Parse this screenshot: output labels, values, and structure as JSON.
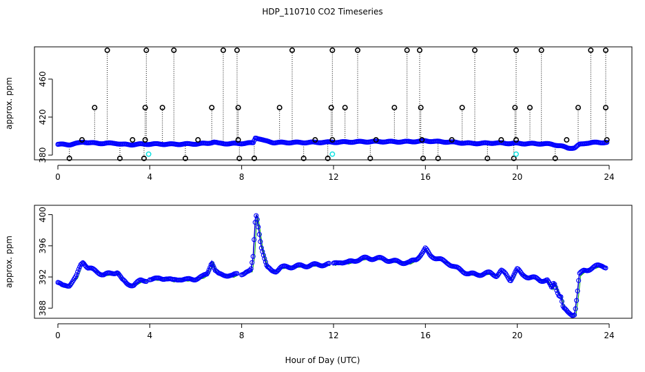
{
  "title": "HDP_110710  CO2 Timeseries",
  "xlabel": "Hour of Day (UTC)",
  "colors": {
    "primary": "#0000ff",
    "outlier": "#000000",
    "flagged": "#00e0e0",
    "smooth": "#00aa00",
    "line": "#0000cc"
  },
  "chart_data": [
    {
      "type": "scatter",
      "name": "top-panel",
      "ylabel": "approx. ppm",
      "xlim": [
        0,
        24
      ],
      "ylim": [
        375,
        494
      ],
      "xticks": [
        0,
        4,
        8,
        12,
        16,
        20,
        24
      ],
      "yticks": [
        380,
        420,
        460
      ],
      "baseline": [
        [
          0,
          391.3
        ],
        [
          0.5,
          391.0
        ],
        [
          0.9,
          392.6
        ],
        [
          1.1,
          394.0
        ],
        [
          1.4,
          392.8
        ],
        [
          2.0,
          392.3
        ],
        [
          2.5,
          392.6
        ],
        [
          2.8,
          391.2
        ],
        [
          3.2,
          391.0
        ],
        [
          3.6,
          391.5
        ],
        [
          4.0,
          391.6
        ],
        [
          4.5,
          391.6
        ],
        [
          5.0,
          391.4
        ],
        [
          5.5,
          391.6
        ],
        [
          6.0,
          391.8
        ],
        [
          6.5,
          392.3
        ],
        [
          6.8,
          393.8
        ],
        [
          7.0,
          392.3
        ],
        [
          7.5,
          392.0
        ],
        [
          8.0,
          392.3
        ],
        [
          8.5,
          392.8
        ],
        [
          8.6,
          398.5
        ],
        [
          8.8,
          397.0
        ],
        [
          9.0,
          395.0
        ],
        [
          9.4,
          393.2
        ],
        [
          10.0,
          393.2
        ],
        [
          11.0,
          393.3
        ],
        [
          12.0,
          393.6
        ],
        [
          12.5,
          393.7
        ],
        [
          13.0,
          394.0
        ],
        [
          14.0,
          394.2
        ],
        [
          15.0,
          394.0
        ],
        [
          15.8,
          394.5
        ],
        [
          16.0,
          395.0
        ],
        [
          16.5,
          394.2
        ],
        [
          17.0,
          393.8
        ],
        [
          17.5,
          393.0
        ],
        [
          18.0,
          392.3
        ],
        [
          18.5,
          392.4
        ],
        [
          19.0,
          392.8
        ],
        [
          19.5,
          392.4
        ],
        [
          20.0,
          392.3
        ],
        [
          20.5,
          392.0
        ],
        [
          21.0,
          392.0
        ],
        [
          21.5,
          391.5
        ],
        [
          21.9,
          389.5
        ],
        [
          22.2,
          387.5
        ],
        [
          22.5,
          387.5
        ],
        [
          22.7,
          391.0
        ],
        [
          23.0,
          392.7
        ],
        [
          23.5,
          393.3
        ],
        [
          23.9,
          393.3
        ]
      ],
      "outliers_high": [
        2.15,
        3.85,
        5.05,
        7.2,
        7.8,
        10.2,
        11.95,
        13.05,
        15.2,
        15.75,
        18.15,
        19.95,
        21.05,
        23.2,
        23.85
      ],
      "outliers_mid": [
        1.6,
        3.8,
        4.55,
        6.7,
        7.85,
        9.65,
        11.9,
        12.5,
        14.65,
        15.8,
        17.6,
        19.9,
        20.55,
        22.65,
        23.85
      ],
      "outliers_low": [
        0.5,
        2.7,
        3.75,
        5.55,
        7.9,
        8.55,
        10.7,
        11.75,
        13.6,
        15.9,
        16.55,
        18.7,
        19.85,
        21.65
      ],
      "outliers_near": [
        1.05,
        3.25,
        3.8,
        6.1,
        7.85,
        11.2,
        11.95,
        13.85,
        15.85,
        17.15,
        19.3,
        19.95,
        22.15,
        23.9
      ],
      "flagged": [
        [
          3.95,
          381
        ],
        [
          11.95,
          381
        ],
        [
          19.95,
          381
        ]
      ]
    },
    {
      "type": "line",
      "name": "bottom-panel",
      "ylabel": "approx. ppm",
      "xlim": [
        0,
        24
      ],
      "ylim": [
        386.7,
        401.2
      ],
      "xticks": [
        0,
        4,
        8,
        12,
        16,
        20,
        24
      ],
      "yticks": [
        388,
        392,
        396,
        400
      ],
      "segments": [
        [
          [
            0,
            391.3
          ],
          [
            0.2,
            390.8
          ],
          [
            0.5,
            391.0
          ],
          [
            0.8,
            392.0
          ],
          [
            1.0,
            393.6
          ],
          [
            1.1,
            394.0
          ],
          [
            1.3,
            393.2
          ],
          [
            1.6,
            392.8
          ],
          [
            2.0,
            392.3
          ],
          [
            2.3,
            392.4
          ],
          [
            2.6,
            392.7
          ],
          [
            2.8,
            391.6
          ],
          [
            3.0,
            391.1
          ],
          [
            3.3,
            391.0
          ],
          [
            3.6,
            391.5
          ],
          [
            3.85,
            391.6
          ]
        ],
        [
          [
            4.0,
            391.8
          ],
          [
            4.3,
            391.7
          ],
          [
            4.7,
            391.9
          ],
          [
            5.0,
            391.5
          ],
          [
            5.3,
            391.8
          ],
          [
            5.6,
            391.6
          ],
          [
            6.0,
            391.8
          ],
          [
            6.3,
            392.0
          ],
          [
            6.5,
            392.4
          ],
          [
            6.7,
            394.0
          ],
          [
            6.85,
            392.8
          ],
          [
            7.0,
            392.3
          ],
          [
            7.3,
            392.3
          ],
          [
            7.6,
            392.1
          ],
          [
            7.8,
            392.4
          ]
        ],
        [
          [
            8.0,
            392.3
          ],
          [
            8.2,
            392.8
          ],
          [
            8.4,
            392.8
          ],
          [
            8.5,
            394.5
          ],
          [
            8.6,
            399.5
          ],
          [
            8.65,
            400.0
          ],
          [
            8.75,
            398.0
          ],
          [
            8.85,
            396.0
          ],
          [
            9.0,
            394.3
          ],
          [
            9.1,
            393.2
          ],
          [
            9.3,
            392.8
          ],
          [
            9.5,
            392.8
          ],
          [
            9.7,
            393.2
          ],
          [
            10.0,
            393.3
          ],
          [
            10.5,
            393.4
          ],
          [
            11.0,
            393.5
          ],
          [
            11.5,
            393.6
          ],
          [
            11.8,
            393.6
          ]
        ],
        [
          [
            12.0,
            393.6
          ],
          [
            12.3,
            394.0
          ],
          [
            12.6,
            393.8
          ],
          [
            13.0,
            394.2
          ],
          [
            13.4,
            394.4
          ],
          [
            13.8,
            394.4
          ],
          [
            14.2,
            394.3
          ],
          [
            14.6,
            394.0
          ],
          [
            15.0,
            393.9
          ],
          [
            15.3,
            393.8
          ],
          [
            15.6,
            394.3
          ],
          [
            15.9,
            395.2
          ],
          [
            16.0,
            395.6
          ],
          [
            16.2,
            394.8
          ],
          [
            16.5,
            394.4
          ],
          [
            16.8,
            394.0
          ],
          [
            17.0,
            393.8
          ],
          [
            17.3,
            393.2
          ],
          [
            17.6,
            392.8
          ],
          [
            17.9,
            392.4
          ],
          [
            18.2,
            392.3
          ],
          [
            18.5,
            392.4
          ],
          [
            18.8,
            392.5
          ],
          [
            19.1,
            392.2
          ],
          [
            19.3,
            392.8
          ],
          [
            19.5,
            392.3
          ],
          [
            19.7,
            391.6
          ],
          [
            19.9,
            392.6
          ],
          [
            20.0,
            393.0
          ],
          [
            20.2,
            392.3
          ],
          [
            20.5,
            392.0
          ],
          [
            20.8,
            391.8
          ],
          [
            21.0,
            391.6
          ],
          [
            21.3,
            391.6
          ],
          [
            21.5,
            390.5
          ],
          [
            21.6,
            391.3
          ],
          [
            21.8,
            389.8
          ],
          [
            21.9,
            389.5
          ],
          [
            22.0,
            388.0
          ],
          [
            22.2,
            387.4
          ],
          [
            22.4,
            387.2
          ],
          [
            22.5,
            387.3
          ],
          [
            22.6,
            389.5
          ],
          [
            22.7,
            392.3
          ],
          [
            22.9,
            392.8
          ],
          [
            23.1,
            393.0
          ],
          [
            23.3,
            393.2
          ],
          [
            23.5,
            393.4
          ],
          [
            23.7,
            393.5
          ],
          [
            23.85,
            393.3
          ]
        ]
      ]
    }
  ]
}
